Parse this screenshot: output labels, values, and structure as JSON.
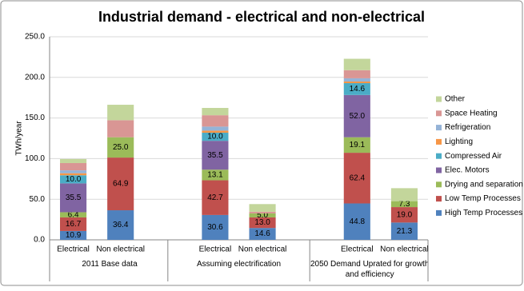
{
  "chart_data": {
    "type": "stacked-bar",
    "title": "Industrial demand - electrical and non-electrical",
    "ylabel": "TWh/year",
    "ylim": [
      0,
      250
    ],
    "yticks": [
      {
        "value": 0,
        "label": "0.0"
      },
      {
        "value": 50,
        "label": "50.0"
      },
      {
        "value": 100,
        "label": "100.0"
      },
      {
        "value": 150,
        "label": "150.0"
      },
      {
        "value": 200,
        "label": "200.0"
      },
      {
        "value": 250,
        "label": "250.0"
      }
    ],
    "grid": true,
    "legend": "right",
    "groups": [
      {
        "label": "2011 Base data",
        "categories": [
          "Electrical",
          "Non electrical"
        ]
      },
      {
        "label": "Assuming electrification",
        "categories": [
          "Electrical",
          "Non electrical"
        ]
      },
      {
        "label": "2050 Demand Uprated for growth and efficiency",
        "categories": [
          "Electrical",
          "Non electrical"
        ]
      }
    ],
    "series": [
      {
        "name": "High Temp Processes",
        "color": "#4f81bd",
        "values": [
          10.9,
          36.4,
          30.6,
          14.6,
          44.8,
          21.3
        ],
        "value_labels": [
          "10.9",
          "36.4",
          "30.6",
          "14.6",
          "44.8",
          "21.3"
        ]
      },
      {
        "name": "Low Temp Processes",
        "color": "#c0504d",
        "values": [
          16.7,
          64.9,
          42.7,
          13.0,
          62.4,
          19.0
        ],
        "value_labels": [
          "16.7",
          "64.9",
          "42.7",
          "13.0",
          "62.4",
          "19.0"
        ]
      },
      {
        "name": "Drying and separation",
        "color": "#9bbb59",
        "values": [
          6.4,
          25.0,
          13.1,
          5.0,
          19.1,
          7.3
        ],
        "value_labels": [
          "6.4",
          "25.0",
          "13.1",
          "5.0",
          "19.1",
          "7.3"
        ]
      },
      {
        "name": "Elec. Motors",
        "color": "#8064a2",
        "values": [
          35.5,
          0,
          35.5,
          0,
          52.0,
          0
        ],
        "value_labels": [
          "35.5",
          null,
          "35.5",
          null,
          "52.0",
          null
        ]
      },
      {
        "name": "Compressed Air",
        "color": "#4bacc6",
        "values": [
          10.0,
          0,
          10.0,
          0,
          14.6,
          0
        ],
        "value_labels": [
          "10.0",
          null,
          "10.0",
          null,
          "14.6",
          null
        ]
      },
      {
        "name": "Lighting",
        "color": "#f79646",
        "values": [
          2.5,
          0,
          2.5,
          0,
          2,
          0
        ]
      },
      {
        "name": "Refrigeration",
        "color": "#95b3d7",
        "values": [
          3.5,
          0,
          5,
          0,
          4,
          0
        ]
      },
      {
        "name": "Space Heating",
        "color": "#d99694",
        "values": [
          9,
          21,
          14,
          2,
          10,
          0
        ]
      },
      {
        "name": "Other",
        "color": "#c3d69b",
        "values": [
          5,
          19,
          9,
          9.4,
          14,
          16
        ]
      }
    ]
  }
}
